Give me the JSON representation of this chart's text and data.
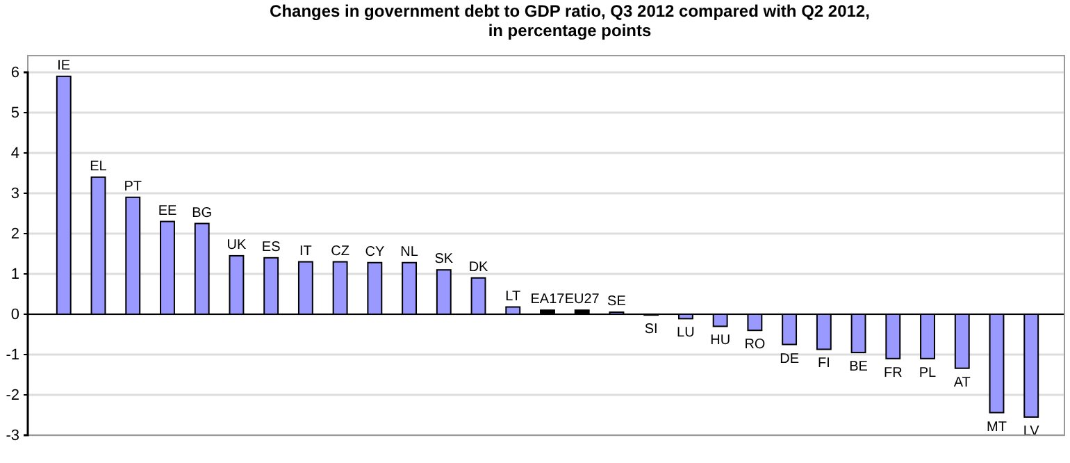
{
  "chart_data": {
    "type": "bar",
    "title": "Changes in government debt to GDP ratio, Q3 2012 compared with Q2 2012,\nin percentage points",
    "categories": [
      "IE",
      "EL",
      "PT",
      "EE",
      "BG",
      "UK",
      "ES",
      "IT",
      "CZ",
      "CY",
      "NL",
      "SK",
      "DK",
      "LT",
      "EA17",
      "EU27",
      "SE",
      "SI",
      "LU",
      "HU",
      "RO",
      "DE",
      "FI",
      "BE",
      "FR",
      "PL",
      "AT",
      "MT",
      "LV"
    ],
    "values": [
      5.9,
      3.4,
      2.9,
      2.3,
      2.25,
      1.45,
      1.4,
      1.3,
      1.3,
      1.28,
      1.28,
      1.1,
      0.9,
      0.18,
      0.1,
      0.1,
      0.05,
      -0.02,
      -0.11,
      -0.3,
      -0.4,
      -0.75,
      -0.87,
      -0.95,
      -1.1,
      -1.1,
      -1.34,
      -2.44,
      -2.55
    ],
    "colors": [
      "#9999ff",
      "#9999ff",
      "#9999ff",
      "#9999ff",
      "#9999ff",
      "#9999ff",
      "#9999ff",
      "#9999ff",
      "#9999ff",
      "#9999ff",
      "#9999ff",
      "#9999ff",
      "#9999ff",
      "#9999ff",
      "#000000",
      "#000000",
      "#9999ff",
      "#9999ff",
      "#9999ff",
      "#9999ff",
      "#9999ff",
      "#9999ff",
      "#9999ff",
      "#9999ff",
      "#9999ff",
      "#9999ff",
      "#9999ff",
      "#9999ff",
      "#9999ff"
    ],
    "ylim": [
      -3,
      6
    ],
    "yticks": [
      -3,
      -2,
      -1,
      0,
      1,
      2,
      3,
      4,
      5,
      6
    ],
    "grid": "y"
  }
}
